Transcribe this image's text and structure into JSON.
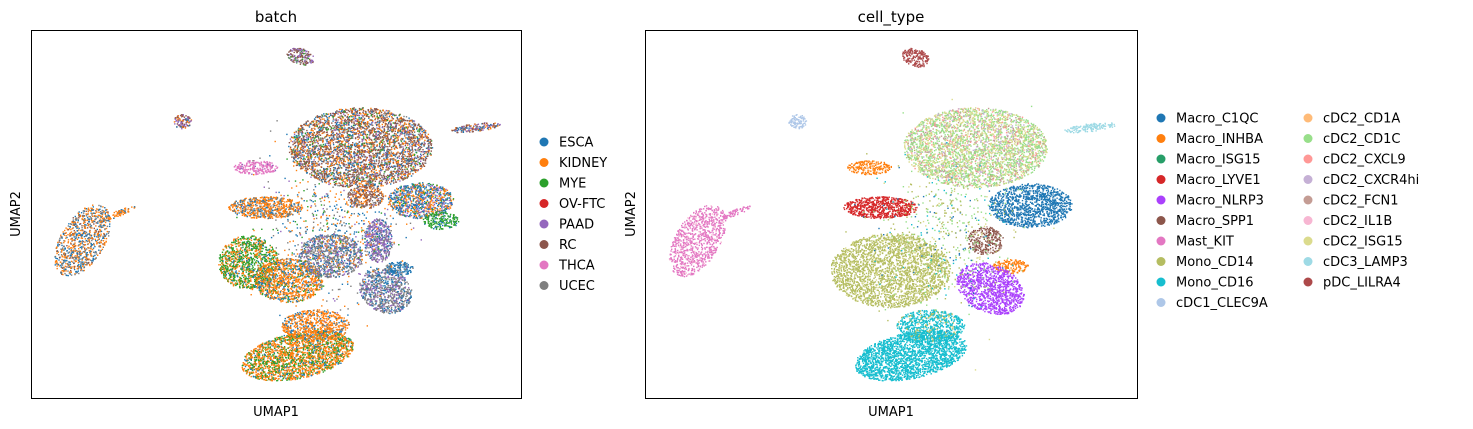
{
  "chart_data": [
    {
      "type": "scatter",
      "title": "batch",
      "xlabel": "UMAP1",
      "ylabel": "UMAP2",
      "grid": false,
      "ticks": "none",
      "legend_placement": "right",
      "legend": [
        {
          "label": "ESCA",
          "color": "#1f77b4"
        },
        {
          "label": "KIDNEY",
          "color": "#ff7f0e"
        },
        {
          "label": "MYE",
          "color": "#2ca02c"
        },
        {
          "label": "OV-FTC",
          "color": "#d62728"
        },
        {
          "label": "PAAD",
          "color": "#9467bd"
        },
        {
          "label": "RC",
          "color": "#8c564b"
        },
        {
          "label": "THCA",
          "color": "#e377c2"
        },
        {
          "label": "UCEC",
          "color": "#7f7f7f"
        }
      ]
    },
    {
      "type": "scatter",
      "title": "cell_type",
      "xlabel": "UMAP1",
      "ylabel": "UMAP2",
      "grid": false,
      "ticks": "none",
      "legend_placement": "right",
      "legend": [
        {
          "label": "Macro_C1QC",
          "color": "#1f77b4"
        },
        {
          "label": "Macro_INHBA",
          "color": "#ff7f0e"
        },
        {
          "label": "Macro_ISG15",
          "color": "#279e68"
        },
        {
          "label": "Macro_LYVE1",
          "color": "#d62728"
        },
        {
          "label": "Macro_NLRP3",
          "color": "#aa40fc"
        },
        {
          "label": "Macro_SPP1",
          "color": "#8c564b"
        },
        {
          "label": "Mast_KIT",
          "color": "#e377c2"
        },
        {
          "label": "Mono_CD14",
          "color": "#b5bd61"
        },
        {
          "label": "Mono_CD16",
          "color": "#17becf"
        },
        {
          "label": "cDC1_CLEC9A",
          "color": "#aec7e8"
        },
        {
          "label": "cDC2_CD1A",
          "color": "#ffbb78"
        },
        {
          "label": "cDC2_CD1C",
          "color": "#98df8a"
        },
        {
          "label": "cDC2_CXCL9",
          "color": "#ff9896"
        },
        {
          "label": "cDC2_CXCR4hi",
          "color": "#c5b0d5"
        },
        {
          "label": "cDC2_FCN1",
          "color": "#c49c94"
        },
        {
          "label": "cDC2_IL1B",
          "color": "#f7b6d2"
        },
        {
          "label": "cDC2_ISG15",
          "color": "#dbdb8d"
        },
        {
          "label": "cDC3_LAMP3",
          "color": "#9edae5"
        },
        {
          "label": "pDC_LILRA4",
          "color": "#ad494a"
        }
      ]
    }
  ]
}
